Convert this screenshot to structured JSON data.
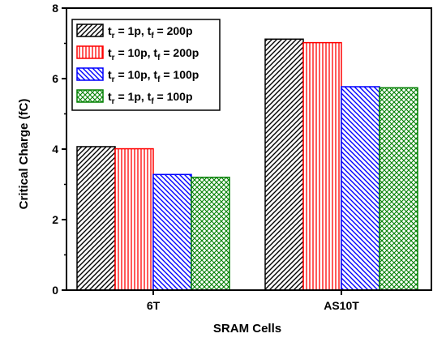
{
  "chart_data": {
    "type": "bar",
    "title": "",
    "xlabel": "SRAM Cells",
    "ylabel": "Critical Charge (fC)",
    "categories": [
      "6T",
      "AS10T"
    ],
    "ylim": [
      0,
      8
    ],
    "yticks": [
      0,
      2,
      4,
      6,
      8
    ],
    "grid": false,
    "legend_position": "top-left",
    "series": [
      {
        "name": "t_r = 1p, t_f = 200p",
        "legend": {
          "a": "t",
          "as": "r",
          "b": " = 1p, t",
          "bs": "f",
          "c": " = 200p"
        },
        "values": [
          4.07,
          7.12
        ],
        "color": "#000000",
        "pattern": "diag-right"
      },
      {
        "name": "t_r = 10p, t_f = 200p",
        "legend": {
          "a": "t",
          "as": "r",
          "b": " = 10p, t",
          "bs": "f",
          "c": " = 200p"
        },
        "values": [
          4.01,
          7.02
        ],
        "color": "#ff0000",
        "pattern": "vertical"
      },
      {
        "name": "t_r = 10p, t_f = 100p",
        "legend": {
          "a": "t",
          "as": "r",
          "b": " = 10p, t",
          "bs": "f",
          "c": " = 100p"
        },
        "values": [
          3.28,
          5.77
        ],
        "color": "#0000ff",
        "pattern": "diag-left"
      },
      {
        "name": "t_r = 1p, t_f = 100p",
        "legend": {
          "a": "t",
          "as": "r",
          "b": " = 1p, t",
          "bs": "f",
          "c": " = 100p"
        },
        "values": [
          3.2,
          5.74
        ],
        "color": "#008000",
        "pattern": "crosshatch"
      }
    ]
  }
}
